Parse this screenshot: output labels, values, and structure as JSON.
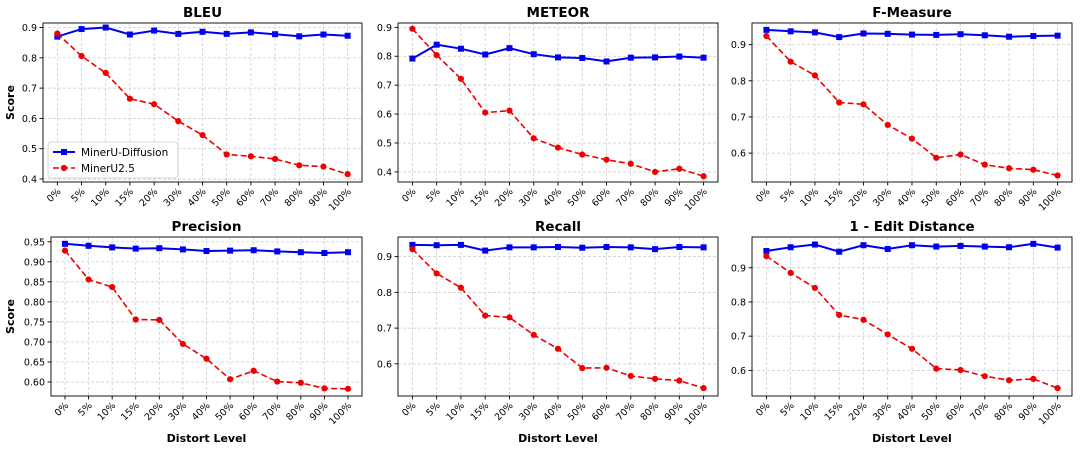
{
  "colors": {
    "diffusion": "#0000ee",
    "minerU": "#ee0000",
    "grid": "#c8c8c8"
  },
  "legend": {
    "placement": "lower-left",
    "panel": 0
  },
  "chart_data": [
    {
      "type": "line",
      "title": "BLEU",
      "ylabel": "Score",
      "xlabel": "",
      "categories": [
        "0%",
        "5%",
        "10%",
        "15%",
        "20%",
        "30%",
        "40%",
        "50%",
        "60%",
        "70%",
        "80%",
        "90%",
        "100%"
      ],
      "ylim": [
        0.39,
        0.915
      ],
      "yticks": [
        "0.4",
        "0.5",
        "0.6",
        "0.7",
        "0.8",
        "0.9"
      ],
      "grid": true,
      "series": [
        {
          "name": "MinerU-Diffusion",
          "values": [
            0.87,
            0.895,
            0.9,
            0.877,
            0.89,
            0.879,
            0.886,
            0.879,
            0.884,
            0.878,
            0.871,
            0.877,
            0.873
          ]
        },
        {
          "name": "MinerU2.5",
          "values": [
            0.88,
            0.806,
            0.75,
            0.665,
            0.647,
            0.591,
            0.545,
            0.481,
            0.475,
            0.466,
            0.445,
            0.441,
            0.416
          ]
        }
      ]
    },
    {
      "type": "line",
      "title": "METEOR",
      "ylabel": "",
      "xlabel": "",
      "categories": [
        "0%",
        "5%",
        "10%",
        "15%",
        "20%",
        "30%",
        "40%",
        "50%",
        "60%",
        "70%",
        "80%",
        "90%",
        "100%"
      ],
      "ylim": [
        0.365,
        0.915
      ],
      "yticks": [
        "0.4",
        "0.5",
        "0.6",
        "0.7",
        "0.8",
        "0.9"
      ],
      "grid": true,
      "series": [
        {
          "name": "MinerU-Diffusion",
          "values": [
            0.792,
            0.84,
            0.826,
            0.806,
            0.828,
            0.807,
            0.796,
            0.794,
            0.782,
            0.795,
            0.796,
            0.799,
            0.795
          ]
        },
        {
          "name": "MinerU2.5",
          "values": [
            0.895,
            0.804,
            0.722,
            0.605,
            0.612,
            0.516,
            0.484,
            0.46,
            0.442,
            0.428,
            0.4,
            0.411,
            0.385
          ]
        }
      ]
    },
    {
      "type": "line",
      "title": "F-Measure",
      "ylabel": "",
      "xlabel": "",
      "categories": [
        "0%",
        "5%",
        "10%",
        "15%",
        "20%",
        "30%",
        "40%",
        "50%",
        "60%",
        "70%",
        "80%",
        "90%",
        "100%"
      ],
      "ylim": [
        0.52,
        0.96
      ],
      "yticks": [
        "0.6",
        "0.7",
        "0.8",
        "0.9"
      ],
      "grid": true,
      "series": [
        {
          "name": "MinerU-Diffusion",
          "values": [
            0.941,
            0.937,
            0.934,
            0.921,
            0.931,
            0.93,
            0.928,
            0.927,
            0.929,
            0.926,
            0.922,
            0.924,
            0.925
          ]
        },
        {
          "name": "MinerU2.5",
          "values": [
            0.924,
            0.853,
            0.815,
            0.74,
            0.735,
            0.678,
            0.64,
            0.587,
            0.596,
            0.568,
            0.558,
            0.554,
            0.538
          ]
        }
      ]
    },
    {
      "type": "line",
      "title": "Precision",
      "ylabel": "Score",
      "xlabel": "Distort Level",
      "categories": [
        "0%",
        "5%",
        "10%",
        "15%",
        "20%",
        "30%",
        "40%",
        "50%",
        "60%",
        "70%",
        "80%",
        "90%",
        "100%"
      ],
      "ylim": [
        0.565,
        0.962
      ],
      "yticks": [
        "0.60",
        "0.65",
        "0.70",
        "0.75",
        "0.80",
        "0.85",
        "0.90",
        "0.95"
      ],
      "grid": true,
      "series": [
        {
          "name": "MinerU-Diffusion",
          "values": [
            0.945,
            0.94,
            0.936,
            0.933,
            0.934,
            0.931,
            0.927,
            0.928,
            0.929,
            0.926,
            0.924,
            0.922,
            0.924
          ]
        },
        {
          "name": "MinerU2.5",
          "values": [
            0.928,
            0.856,
            0.837,
            0.756,
            0.755,
            0.695,
            0.658,
            0.607,
            0.628,
            0.601,
            0.598,
            0.584,
            0.583
          ]
        }
      ]
    },
    {
      "type": "line",
      "title": "Recall",
      "ylabel": "",
      "xlabel": "Distort Level",
      "categories": [
        "0%",
        "5%",
        "10%",
        "15%",
        "20%",
        "30%",
        "40%",
        "50%",
        "60%",
        "70%",
        "80%",
        "90%",
        "100%"
      ],
      "ylim": [
        0.51,
        0.955
      ],
      "yticks": [
        "0.6",
        "0.7",
        "0.8",
        "0.9"
      ],
      "grid": true,
      "series": [
        {
          "name": "MinerU-Diffusion",
          "values": [
            0.933,
            0.932,
            0.933,
            0.917,
            0.926,
            0.926,
            0.927,
            0.925,
            0.927,
            0.926,
            0.921,
            0.927,
            0.926
          ]
        },
        {
          "name": "MinerU2.5",
          "values": [
            0.921,
            0.853,
            0.813,
            0.735,
            0.73,
            0.681,
            0.642,
            0.588,
            0.589,
            0.566,
            0.558,
            0.553,
            0.532
          ]
        }
      ]
    },
    {
      "type": "line",
      "title": "1 - Edit Distance",
      "ylabel": "",
      "xlabel": "Distort Level",
      "categories": [
        "0%",
        "5%",
        "10%",
        "15%",
        "20%",
        "30%",
        "40%",
        "50%",
        "60%",
        "70%",
        "80%",
        "90%",
        "100%"
      ],
      "ylim": [
        0.525,
        0.99
      ],
      "yticks": [
        "0.6",
        "0.7",
        "0.8",
        "0.9"
      ],
      "grid": true,
      "series": [
        {
          "name": "MinerU-Diffusion",
          "values": [
            0.949,
            0.96,
            0.968,
            0.947,
            0.966,
            0.955,
            0.966,
            0.962,
            0.964,
            0.962,
            0.96,
            0.97,
            0.959
          ]
        },
        {
          "name": "MinerU2.5",
          "values": [
            0.934,
            0.885,
            0.841,
            0.762,
            0.748,
            0.705,
            0.663,
            0.605,
            0.601,
            0.583,
            0.571,
            0.575,
            0.548
          ]
        }
      ]
    }
  ]
}
